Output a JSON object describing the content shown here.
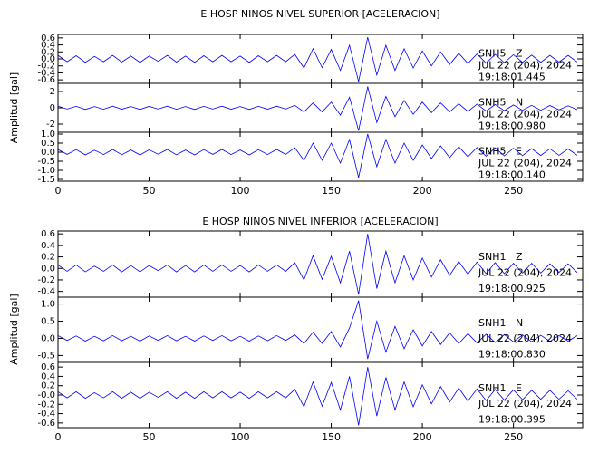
{
  "chart_data": [
    {
      "type": "line",
      "title": "E HOSP NINOS NIVEL SUPERIOR [ACELERACION]",
      "ylabel": "Amplitud [gal]",
      "xlim": [
        0,
        288
      ],
      "xticks": [
        0,
        50,
        100,
        150,
        200,
        250
      ],
      "x": [
        0,
        5,
        10,
        15,
        20,
        25,
        30,
        35,
        40,
        45,
        50,
        55,
        60,
        65,
        70,
        75,
        80,
        85,
        90,
        95,
        100,
        105,
        110,
        115,
        120,
        125,
        130,
        135,
        140,
        145,
        150,
        155,
        160,
        165,
        170,
        175,
        180,
        185,
        190,
        195,
        200,
        205,
        210,
        215,
        220,
        225,
        230,
        235,
        240,
        245,
        250,
        255,
        260,
        265,
        270,
        275,
        280,
        285
      ],
      "series": [
        {
          "name": "SNH5   Z",
          "date": "JUL 22 (204), 2024",
          "time": "19:18:01.445",
          "color": "#0000ff",
          "ylim": [
            -0.7,
            0.7
          ],
          "yticks": [
            0.6,
            0.4,
            0.2,
            {
              "value": 0,
              "label": "0.0"
            },
            -0.2,
            -0.4,
            -0.6
          ],
          "values": [
            0.1,
            -0.08,
            0.09,
            -0.1,
            0.07,
            -0.08,
            0.1,
            -0.09,
            0.08,
            -0.1,
            0.08,
            -0.07,
            0.1,
            -0.09,
            0.08,
            -0.1,
            0.09,
            -0.08,
            0.1,
            -0.08,
            0.08,
            -0.1,
            0.09,
            -0.08,
            0.1,
            -0.08,
            0.13,
            -0.26,
            0.29,
            -0.25,
            0.27,
            -0.33,
            0.39,
            -0.65,
            0.62,
            -0.46,
            0.39,
            -0.33,
            0.29,
            -0.26,
            0.23,
            -0.2,
            0.2,
            -0.16,
            0.16,
            -0.13,
            0.14,
            -0.12,
            0.13,
            -0.11,
            0.12,
            -0.1,
            0.11,
            -0.1,
            0.1,
            -0.09,
            0.1,
            -0.09
          ]
        },
        {
          "name": "SNH5   N",
          "date": "JUL 22 (204), 2024",
          "time": "19:18:00.980",
          "color": "#0000ff",
          "ylim": [
            -3,
            3
          ],
          "yticks": [
            2,
            0,
            -2
          ],
          "values": [
            0.2,
            -0.15,
            0.18,
            -0.2,
            0.15,
            -0.18,
            0.2,
            -0.17,
            0.15,
            -0.2,
            0.17,
            -0.15,
            0.2,
            -0.18,
            0.15,
            -0.2,
            0.18,
            -0.15,
            0.2,
            -0.17,
            0.15,
            -0.2,
            0.18,
            -0.17,
            0.2,
            -0.15,
            0.3,
            -0.5,
            0.6,
            -0.5,
            0.7,
            -0.9,
            1.3,
            -2.8,
            2.6,
            -1.8,
            1.4,
            -1.1,
            0.9,
            -0.8,
            0.7,
            -0.6,
            0.6,
            -0.5,
            0.5,
            -0.45,
            0.45,
            -0.4,
            0.4,
            -0.35,
            0.35,
            -0.3,
            0.3,
            -0.3,
            0.28,
            -0.25,
            0.25,
            -0.22
          ]
        },
        {
          "name": "SNH5   E",
          "date": "JUL 22 (204), 2024",
          "time": "19:18:00.140",
          "color": "#0000ff",
          "ylim": [
            -1.6,
            1.1
          ],
          "yticks": [
            {
              "value": 1,
              "label": "1.0"
            },
            0.5,
            {
              "value": 0,
              "label": "0.0"
            },
            -0.5,
            {
              "value": -1,
              "label": "-1.0"
            },
            -1.5
          ],
          "values": [
            0.15,
            -0.12,
            0.14,
            -0.15,
            0.11,
            -0.13,
            0.15,
            -0.14,
            0.12,
            -0.15,
            0.13,
            -0.11,
            0.15,
            -0.14,
            0.12,
            -0.15,
            0.14,
            -0.12,
            0.15,
            -0.13,
            0.12,
            -0.15,
            0.14,
            -0.13,
            0.15,
            -0.12,
            0.25,
            -0.45,
            0.5,
            -0.45,
            0.5,
            -0.6,
            0.7,
            -1.4,
            1.0,
            -0.8,
            0.7,
            -0.6,
            0.5,
            -0.45,
            0.4,
            -0.35,
            0.35,
            -0.3,
            0.3,
            -0.25,
            0.26,
            -0.22,
            0.24,
            -0.2,
            0.22,
            -0.19,
            0.2,
            -0.18,
            0.19,
            -0.17,
            0.18,
            -0.17
          ]
        }
      ]
    },
    {
      "type": "line",
      "title": "E HOSP NINOS NIVEL INFERIOR [ACELERACION]",
      "ylabel": "Amplitud [gal]",
      "xlim": [
        0,
        288
      ],
      "xticks": [
        0,
        50,
        100,
        150,
        200,
        250
      ],
      "x": [
        0,
        5,
        10,
        15,
        20,
        25,
        30,
        35,
        40,
        45,
        50,
        55,
        60,
        65,
        70,
        75,
        80,
        85,
        90,
        95,
        100,
        105,
        110,
        115,
        120,
        125,
        130,
        135,
        140,
        145,
        150,
        155,
        160,
        165,
        170,
        175,
        180,
        185,
        190,
        195,
        200,
        205,
        210,
        215,
        220,
        225,
        230,
        235,
        240,
        245,
        250,
        255,
        260,
        265,
        270,
        275,
        280,
        285
      ],
      "series": [
        {
          "name": "SNH1   Z",
          "date": "JUL 22 (204), 2024",
          "time": "19:18:00.925",
          "color": "#0000ff",
          "ylim": [
            -0.5,
            0.65
          ],
          "yticks": [
            0.6,
            0.4,
            0.2,
            {
              "value": 0,
              "label": "0.0"
            },
            -0.2,
            -0.4
          ],
          "values": [
            0.06,
            -0.05,
            0.06,
            -0.06,
            0.04,
            -0.05,
            0.06,
            -0.06,
            0.05,
            -0.06,
            0.05,
            -0.04,
            0.06,
            -0.06,
            0.05,
            -0.06,
            0.06,
            -0.05,
            0.06,
            -0.05,
            0.05,
            -0.06,
            0.06,
            -0.05,
            0.06,
            -0.05,
            0.1,
            -0.2,
            0.22,
            -0.19,
            0.21,
            -0.25,
            0.3,
            -0.45,
            0.6,
            -0.35,
            0.3,
            -0.25,
            0.22,
            -0.2,
            0.18,
            -0.15,
            0.15,
            -0.12,
            0.12,
            -0.1,
            0.11,
            -0.09,
            0.1,
            -0.09,
            0.09,
            -0.08,
            0.09,
            -0.08,
            0.08,
            -0.07,
            0.08,
            -0.07
          ]
        },
        {
          "name": "SNH1   N",
          "date": "JUL 22 (204), 2024",
          "time": "19:18:00.830",
          "color": "#0000ff",
          "ylim": [
            -0.7,
            1.2
          ],
          "yticks": [
            {
              "value": 1,
              "label": "1.0"
            },
            0.5,
            {
              "value": 0,
              "label": "0.0"
            },
            -0.5
          ],
          "values": [
            0.08,
            -0.06,
            0.07,
            -0.08,
            0.06,
            -0.07,
            0.08,
            -0.07,
            0.06,
            -0.08,
            0.07,
            -0.06,
            0.08,
            -0.07,
            0.06,
            -0.08,
            0.07,
            -0.06,
            0.08,
            -0.07,
            0.06,
            -0.08,
            0.07,
            -0.07,
            0.08,
            -0.06,
            0.1,
            -0.15,
            0.18,
            -0.15,
            0.2,
            -0.25,
            0.3,
            1.1,
            -0.6,
            0.5,
            -0.4,
            0.35,
            -0.3,
            0.25,
            -0.22,
            0.2,
            -0.18,
            0.16,
            -0.15,
            0.14,
            -0.13,
            0.12,
            -0.12,
            0.11,
            -0.1,
            0.1,
            -0.1,
            0.09,
            -0.09,
            0.08,
            -0.08,
            0.08
          ]
        },
        {
          "name": "SNH1   E",
          "date": "JUL 22 (204), 2024",
          "time": "19:18:00.395",
          "color": "#0000ff",
          "ylim": [
            -0.7,
            0.7
          ],
          "yticks": [
            0.6,
            0.4,
            0.2,
            {
              "value": 0,
              "label": "-0.0"
            },
            -0.2,
            -0.4,
            -0.6
          ],
          "values": [
            0.07,
            -0.06,
            0.07,
            -0.07,
            0.05,
            -0.06,
            0.07,
            -0.07,
            0.06,
            -0.07,
            0.06,
            -0.05,
            0.07,
            -0.07,
            0.06,
            -0.07,
            0.07,
            -0.06,
            0.07,
            -0.06,
            0.06,
            -0.07,
            0.07,
            -0.06,
            0.07,
            -0.06,
            0.12,
            -0.25,
            0.28,
            -0.24,
            0.27,
            -0.32,
            0.4,
            -0.65,
            0.6,
            -0.45,
            0.38,
            -0.32,
            0.28,
            -0.25,
            0.22,
            -0.19,
            0.18,
            -0.15,
            0.15,
            -0.13,
            0.13,
            -0.12,
            0.12,
            -0.11,
            0.11,
            -0.1,
            0.1,
            -0.09,
            0.1,
            -0.09,
            0.09,
            -0.09
          ]
        }
      ]
    }
  ]
}
